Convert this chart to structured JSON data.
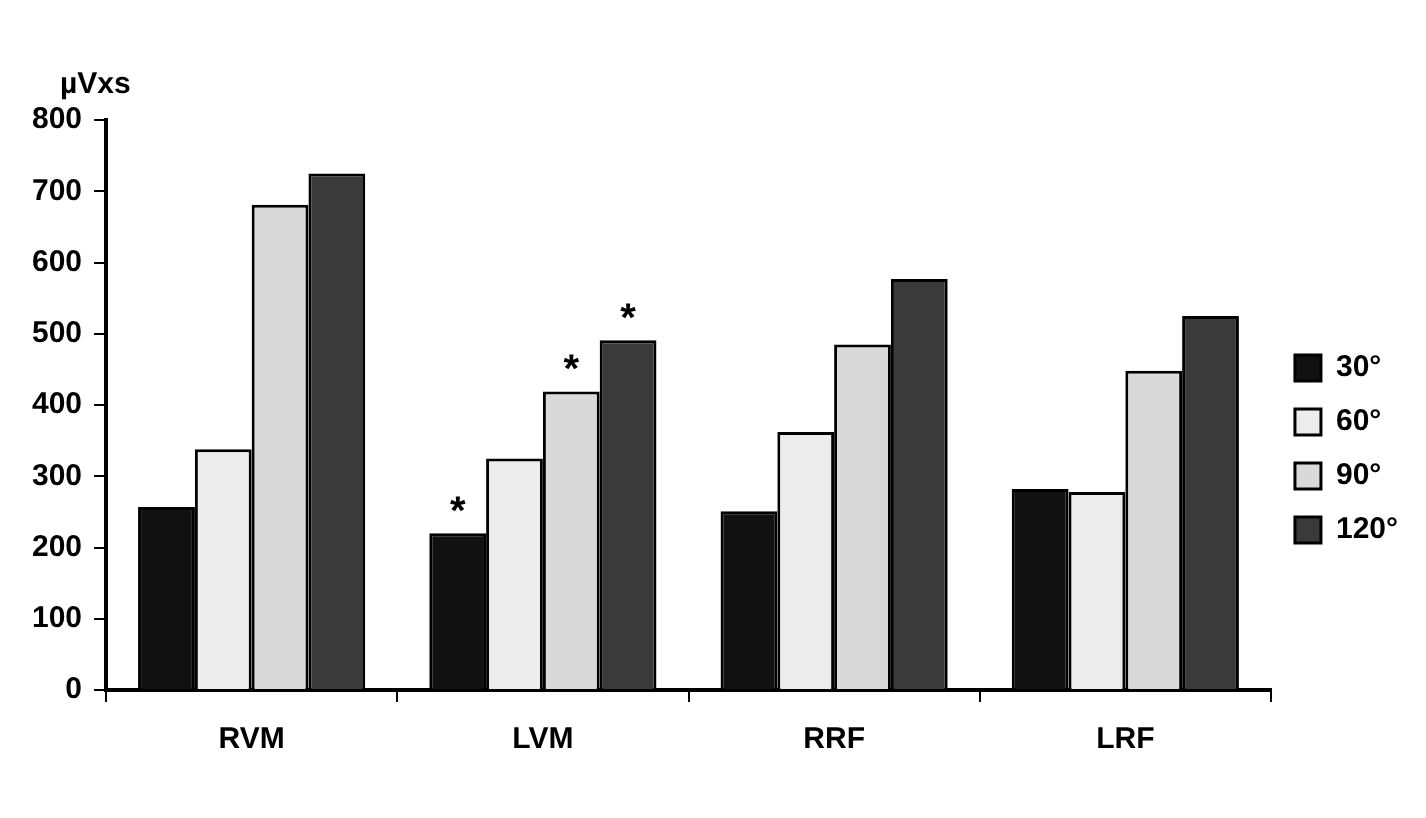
{
  "chart_data": {
    "type": "bar",
    "ylabel": "µVxs",
    "categories": [
      "RVM",
      "LVM",
      "RRF",
      "LRF"
    ],
    "series": [
      {
        "name": "30°",
        "color": "#111111",
        "values": [
          257,
          220,
          251,
          282
        ],
        "value_labels": [
          null,
          "*",
          null,
          null
        ]
      },
      {
        "name": "60°",
        "color": "#ececec",
        "values": [
          338,
          325,
          362,
          278
        ]
      },
      {
        "name": "90°",
        "color": "#d9d9d9",
        "values": [
          681,
          419,
          485,
          448
        ],
        "value_labels": [
          null,
          "*",
          null,
          null
        ]
      },
      {
        "name": "120°",
        "color": "#3a3a3a",
        "values": [
          725,
          491,
          577,
          525
        ],
        "value_labels": [
          null,
          "*",
          null,
          null
        ]
      }
    ],
    "ylim": [
      0,
      800
    ],
    "yticks": [
      0,
      100,
      200,
      300,
      400,
      500,
      600,
      700,
      800
    ],
    "grid": false,
    "legend": "right"
  }
}
